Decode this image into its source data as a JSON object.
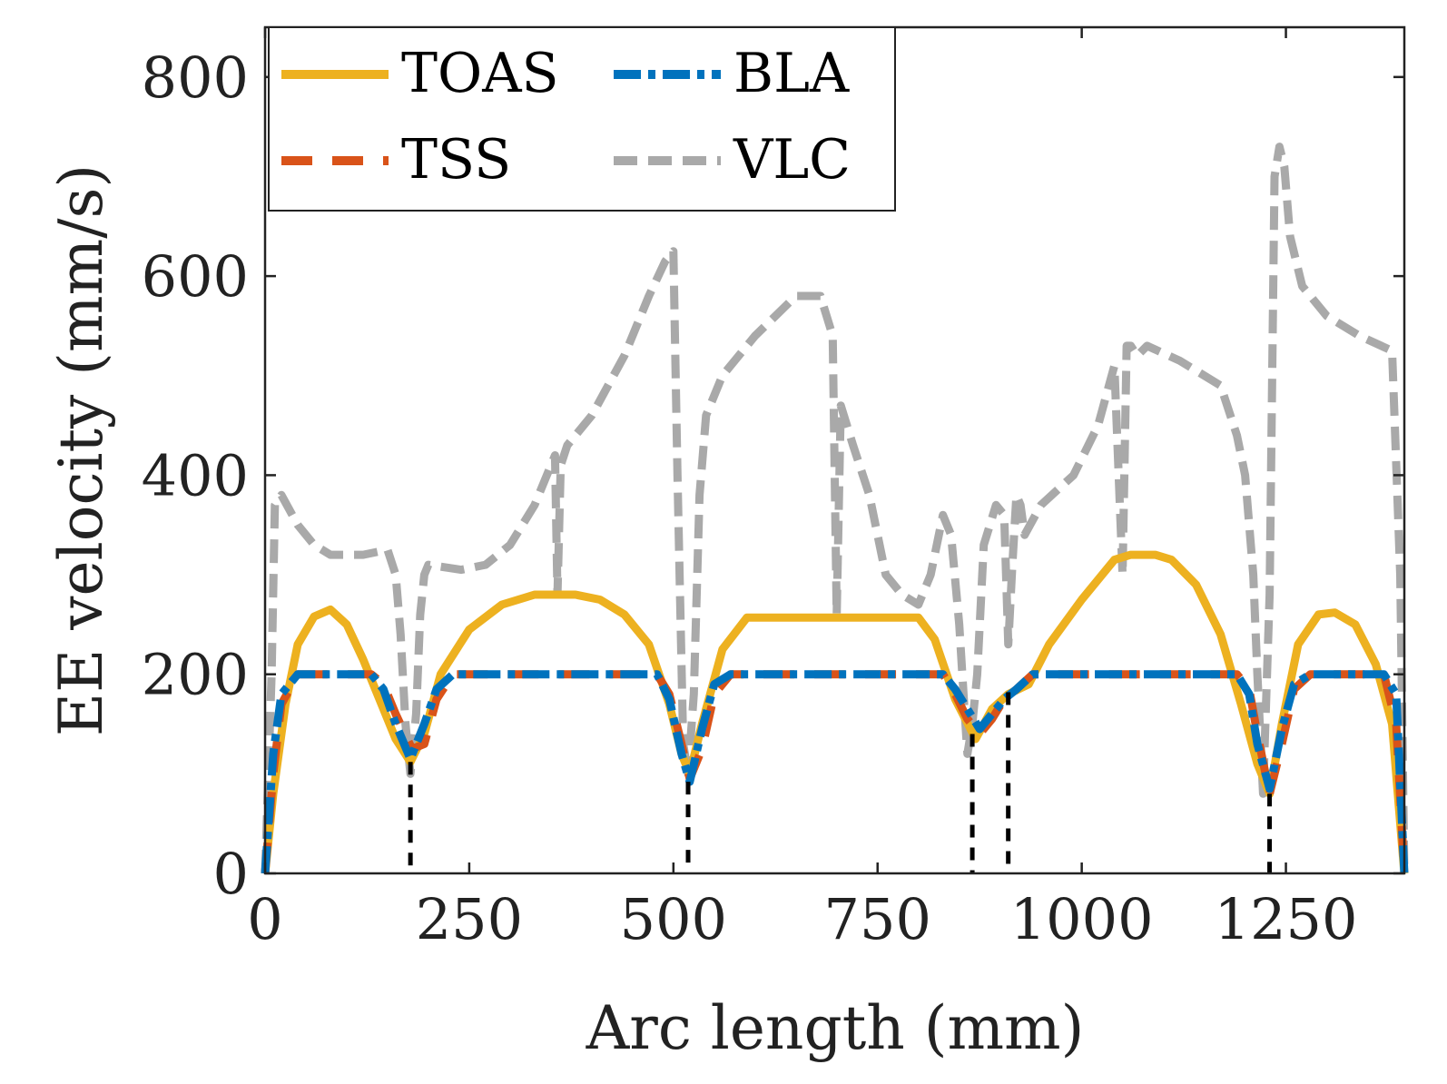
{
  "chart_data": {
    "type": "line",
    "xlabel": "Arc length (mm)",
    "ylabel": "EE velocity (mm/s)",
    "xlim": [
      0,
      1395
    ],
    "ylim": [
      0,
      850
    ],
    "x_ticks": [
      0,
      250,
      500,
      750,
      1000,
      1250
    ],
    "y_ticks": [
      0,
      200,
      400,
      600,
      800
    ],
    "grid": false,
    "legend": {
      "placement": "top-left",
      "columns": 2
    },
    "series": [
      {
        "name": "TOAS",
        "color": "#EDB120",
        "style": "solid",
        "x": [
          0,
          10,
          25,
          40,
          60,
          80,
          100,
          120,
          140,
          160,
          178,
          195,
          215,
          250,
          290,
          330,
          380,
          410,
          440,
          470,
          495,
          510,
          520,
          535,
          560,
          590,
          650,
          750,
          800,
          820,
          845,
          870,
          890,
          910,
          935,
          960,
          1000,
          1040,
          1060,
          1090,
          1110,
          1140,
          1170,
          1195,
          1215,
          1230,
          1245,
          1265,
          1290,
          1310,
          1335,
          1360,
          1380,
          1395
        ],
        "values": [
          0,
          80,
          170,
          230,
          258,
          265,
          250,
          215,
          175,
          135,
          112,
          140,
          200,
          245,
          270,
          280,
          280,
          275,
          260,
          230,
          170,
          120,
          100,
          150,
          225,
          257,
          257,
          257,
          257,
          235,
          175,
          135,
          165,
          180,
          190,
          230,
          275,
          315,
          320,
          320,
          315,
          290,
          240,
          170,
          110,
          80,
          150,
          230,
          260,
          262,
          250,
          210,
          150,
          0
        ]
      },
      {
        "name": "TSS",
        "color": "#D95319",
        "style": "dashed",
        "x": [
          0,
          10,
          20,
          40,
          60,
          130,
          145,
          160,
          180,
          195,
          210,
          230,
          250,
          480,
          495,
          510,
          520,
          535,
          550,
          570,
          590,
          830,
          845,
          860,
          875,
          890,
          905,
          920,
          940,
          960,
          1190,
          1205,
          1215,
          1230,
          1245,
          1260,
          1280,
          1370,
          1385,
          1395
        ],
        "values": [
          0,
          100,
          170,
          200,
          200,
          200,
          190,
          160,
          125,
          130,
          175,
          200,
          200,
          200,
          180,
          130,
          95,
          125,
          180,
          200,
          200,
          200,
          180,
          155,
          140,
          155,
          175,
          185,
          200,
          200,
          200,
          185,
          140,
          80,
          130,
          185,
          200,
          200,
          150,
          0
        ]
      },
      {
        "name": "BLA",
        "color": "#0072BD",
        "style": "dash-dot",
        "x": [
          0,
          10,
          20,
          40,
          60,
          130,
          145,
          160,
          178,
          195,
          210,
          230,
          250,
          480,
          495,
          510,
          520,
          535,
          550,
          570,
          590,
          830,
          845,
          860,
          875,
          890,
          905,
          920,
          940,
          960,
          1190,
          1205,
          1215,
          1230,
          1245,
          1260,
          1280,
          1370,
          1385,
          1395
        ],
        "values": [
          0,
          120,
          180,
          200,
          200,
          200,
          185,
          150,
          115,
          150,
          185,
          200,
          200,
          200,
          175,
          120,
          92,
          145,
          190,
          200,
          200,
          200,
          185,
          165,
          145,
          160,
          175,
          185,
          200,
          200,
          200,
          180,
          130,
          85,
          145,
          190,
          200,
          200,
          180,
          0
        ]
      },
      {
        "name": "VLC",
        "color": "#A9A9A9",
        "style": "dashed",
        "x": [
          0,
          8,
          12,
          20,
          40,
          60,
          80,
          100,
          120,
          150,
          160,
          166,
          172,
          178,
          185,
          190,
          195,
          200,
          240,
          270,
          300,
          330,
          355,
          358,
          362,
          370,
          400,
          440,
          470,
          490,
          500,
          505,
          512,
          518,
          525,
          532,
          540,
          560,
          600,
          650,
          680,
          695,
          700,
          705,
          720,
          740,
          760,
          780,
          800,
          815,
          830,
          840,
          850,
          856,
          860,
          866,
          872,
          880,
          895,
          905,
          910,
          915,
          920,
          925,
          930,
          950,
          990,
          1020,
          1040,
          1050,
          1055,
          1060,
          1068,
          1080,
          1120,
          1170,
          1190,
          1200,
          1210,
          1215,
          1222,
          1230,
          1236,
          1242,
          1248,
          1255,
          1270,
          1300,
          1340,
          1380,
          1390,
          1395
        ],
        "values": [
          0,
          200,
          370,
          380,
          350,
          330,
          320,
          320,
          320,
          325,
          300,
          240,
          150,
          100,
          160,
          260,
          300,
          310,
          305,
          310,
          330,
          370,
          420,
          280,
          410,
          430,
          460,
          520,
          580,
          615,
          625,
          400,
          130,
          100,
          180,
          380,
          460,
          500,
          540,
          580,
          580,
          540,
          260,
          470,
          430,
          380,
          300,
          280,
          270,
          300,
          360,
          340,
          250,
          170,
          120,
          150,
          200,
          330,
          370,
          360,
          230,
          310,
          380,
          370,
          340,
          370,
          400,
          450,
          510,
          300,
          530,
          530,
          520,
          530,
          515,
          490,
          440,
          400,
          300,
          200,
          80,
          280,
          700,
          730,
          710,
          640,
          590,
          560,
          540,
          525,
          300,
          0
        ]
      },
      {
        "name": "",
        "color": "#000000",
        "style": "dotted-vertical-markers",
        "x": [
          178,
          518,
          866,
          910,
          1230
        ],
        "values": [
          112,
          92,
          140,
          182,
          80
        ]
      }
    ]
  }
}
